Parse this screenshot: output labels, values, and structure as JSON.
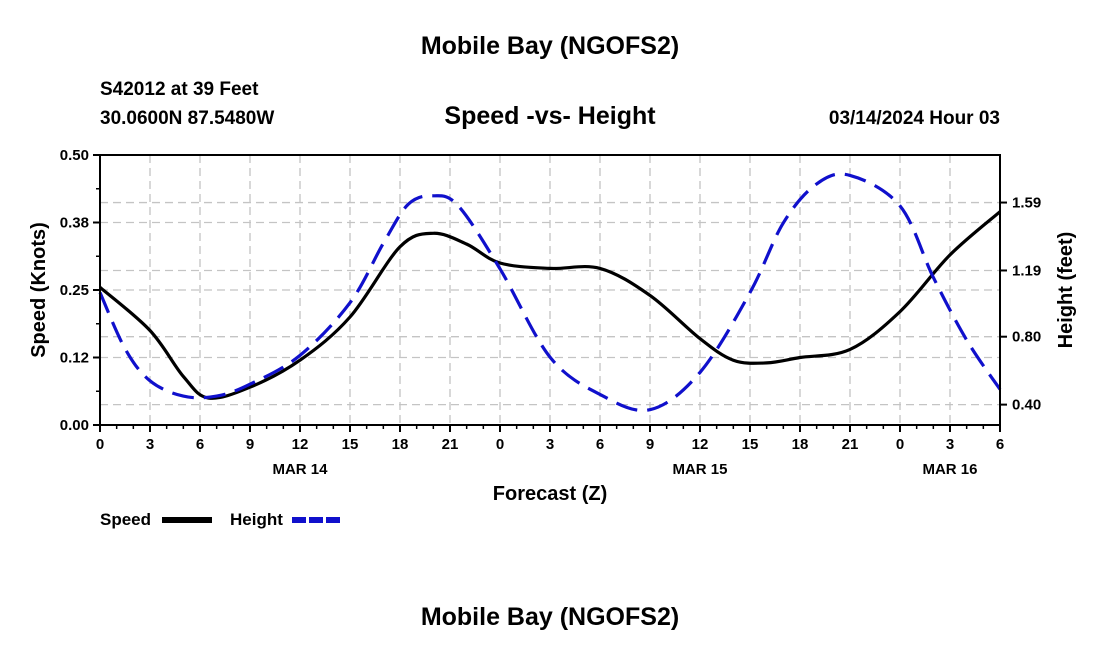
{
  "header": {
    "title_top": "Mobile Bay (NGOFS2)",
    "station": "S42012 at 39 Feet",
    "coords": "30.0600N  87.5480W",
    "subtitle": "Speed -vs- Height",
    "datetime": "03/14/2024 Hour 03",
    "title_bottom": "Mobile Bay (NGOFS2)"
  },
  "colors": {
    "speed": "#000000",
    "height": "#1010cc",
    "grid": "#c4c4c4"
  },
  "chart_data": {
    "type": "line",
    "title": "Speed -vs- Height",
    "xlabel": "Forecast (Z)",
    "ylabel": "Speed (Knots)",
    "y2label": "Height (feet)",
    "x_range": [
      0,
      54
    ],
    "x_ticks": [
      0,
      3,
      6,
      9,
      12,
      15,
      18,
      21,
      24,
      27,
      30,
      33,
      36,
      39,
      42,
      45,
      48,
      51,
      54
    ],
    "x_tick_labels": [
      "0",
      "3",
      "6",
      "9",
      "12",
      "15",
      "18",
      "21",
      "0",
      "3",
      "6",
      "9",
      "12",
      "15",
      "18",
      "21",
      "0",
      "3",
      "6"
    ],
    "date_labels": [
      {
        "x": 12,
        "label": "MAR 14"
      },
      {
        "x": 36,
        "label": "MAR 15"
      },
      {
        "x": 51,
        "label": "MAR 16"
      }
    ],
    "ylim": [
      0,
      0.5
    ],
    "y_ticks": [
      0.0,
      0.125,
      0.25,
      0.375,
      0.5
    ],
    "y_tick_labels": [
      "0.00",
      "0.12",
      "0.25",
      "0.38",
      "0.50"
    ],
    "y2lim": [
      0.28,
      1.87
    ],
    "y2_ticks": [
      0.4,
      0.8,
      1.19,
      1.59
    ],
    "y2_tick_labels": [
      "0.40",
      "0.80",
      "1.19",
      "1.59"
    ],
    "grid": true,
    "legend_position": "bottom-left",
    "series": [
      {
        "name": "Speed",
        "axis": "left",
        "style": "solid",
        "x": [
          0,
          3,
          5,
          6.5,
          9,
          12,
          15,
          18,
          20,
          22,
          24,
          27,
          30,
          33,
          36,
          38,
          40,
          42,
          45,
          48,
          51,
          54
        ],
        "values": [
          0.255,
          0.175,
          0.09,
          0.05,
          0.07,
          0.12,
          0.2,
          0.33,
          0.355,
          0.335,
          0.3,
          0.29,
          0.29,
          0.24,
          0.16,
          0.12,
          0.115,
          0.125,
          0.14,
          0.21,
          0.315,
          0.395
        ]
      },
      {
        "name": "Height",
        "axis": "right",
        "style": "dashed",
        "x": [
          0,
          1.5,
          3,
          5,
          7,
          9,
          12,
          15,
          17,
          18.5,
          20,
          21.5,
          24,
          27,
          30,
          33,
          36,
          39,
          41,
          43,
          45,
          48,
          50,
          52,
          54
        ],
        "values": [
          1.06,
          0.73,
          0.54,
          0.45,
          0.45,
          0.52,
          0.69,
          1.0,
          1.35,
          1.58,
          1.63,
          1.57,
          1.2,
          0.68,
          0.46,
          0.37,
          0.59,
          1.06,
          1.47,
          1.7,
          1.75,
          1.57,
          1.15,
          0.78,
          0.49
        ]
      }
    ]
  },
  "legend": {
    "speed_label": "Speed",
    "height_label": "Height"
  }
}
